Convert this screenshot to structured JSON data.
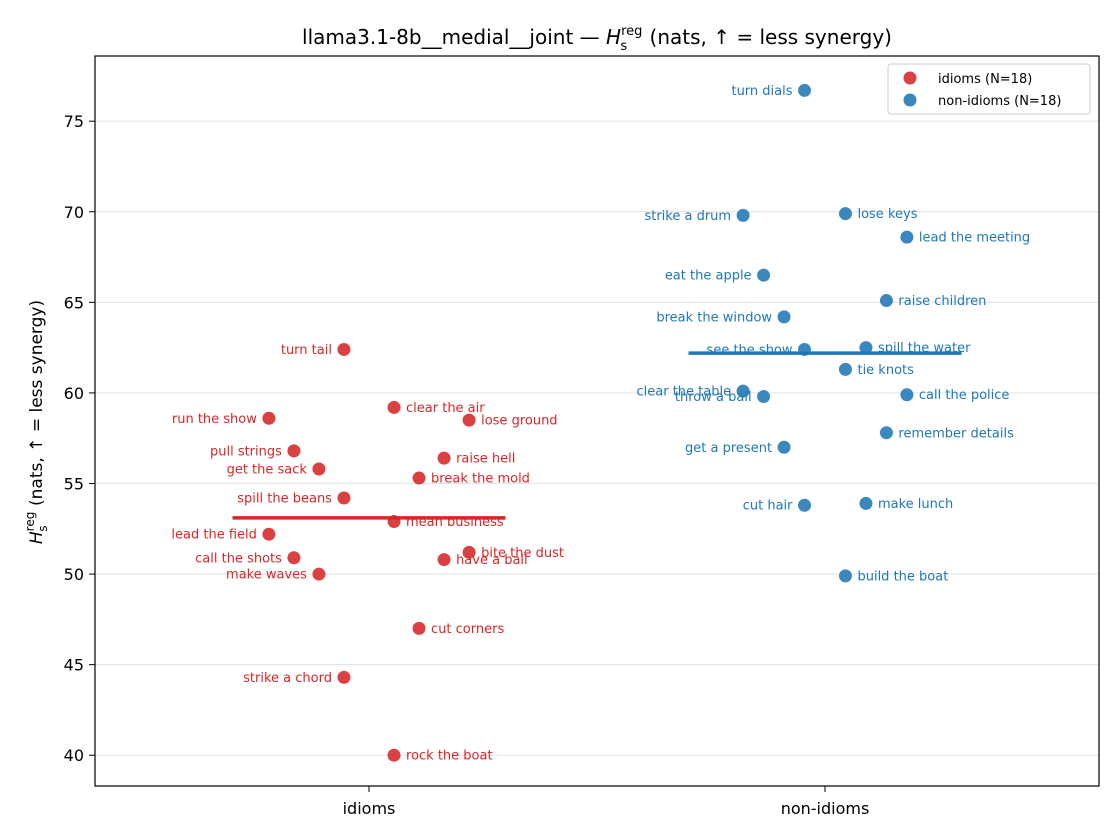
{
  "chart_data": {
    "type": "scatter",
    "title": {
      "prefix": "llama3.1-8b__medial__joint — ",
      "symbol": "H",
      "sub": "s",
      "sup": "reg",
      "suffix": " (nats, ↑ = less synergy)"
    },
    "ylabel": {
      "symbol": "H",
      "sub": "s",
      "sup": "reg",
      "suffix": " (nats, ↑ = less synergy)"
    },
    "categories": [
      "idioms",
      "non-idioms"
    ],
    "ylim": [
      38.3,
      78.6
    ],
    "yticks": [
      40,
      45,
      50,
      55,
      60,
      65,
      70,
      75
    ],
    "grid": "horizontal",
    "legend": {
      "position": "top-right"
    },
    "colors": {
      "idioms": "#d62728",
      "non-idioms": "#1f77b4"
    },
    "series": [
      {
        "name": "idioms (N=18)",
        "category": "idioms",
        "mean": 53.1,
        "points": [
          {
            "label": "turn tail",
            "jitter": -0.055,
            "y": 62.4
          },
          {
            "label": "clear the air",
            "jitter": 0.055,
            "y": 59.2
          },
          {
            "label": "run the show",
            "jitter": -0.22,
            "y": 58.6
          },
          {
            "label": "lose ground",
            "jitter": 0.22,
            "y": 58.5
          },
          {
            "label": "pull strings",
            "jitter": -0.165,
            "y": 56.8
          },
          {
            "label": "raise hell",
            "jitter": 0.165,
            "y": 56.4
          },
          {
            "label": "get the sack",
            "jitter": -0.11,
            "y": 55.8
          },
          {
            "label": "break the mold",
            "jitter": 0.11,
            "y": 55.3
          },
          {
            "label": "spill the beans",
            "jitter": -0.055,
            "y": 54.2
          },
          {
            "label": "mean business",
            "jitter": 0.055,
            "y": 52.9
          },
          {
            "label": "lead the field",
            "jitter": -0.22,
            "y": 52.2
          },
          {
            "label": "bite the dust",
            "jitter": 0.22,
            "y": 51.2
          },
          {
            "label": "call the shots",
            "jitter": -0.165,
            "y": 50.9
          },
          {
            "label": "have a ball",
            "jitter": 0.165,
            "y": 50.8
          },
          {
            "label": "make waves",
            "jitter": -0.11,
            "y": 50.0
          },
          {
            "label": "cut corners",
            "jitter": 0.11,
            "y": 47.0
          },
          {
            "label": "strike a chord",
            "jitter": -0.055,
            "y": 44.3
          },
          {
            "label": "rock the boat",
            "jitter": 0.055,
            "y": 40.0
          }
        ]
      },
      {
        "name": "non-idioms (N=18)",
        "category": "non-idioms",
        "mean": 62.2,
        "points": [
          {
            "label": "turn dials",
            "jitter": -0.045,
            "y": 76.7
          },
          {
            "label": "lose keys",
            "jitter": 0.045,
            "y": 69.9
          },
          {
            "label": "strike a drum",
            "jitter": -0.18,
            "y": 69.8
          },
          {
            "label": "lead the meeting",
            "jitter": 0.18,
            "y": 68.6
          },
          {
            "label": "eat the apple",
            "jitter": -0.135,
            "y": 66.5
          },
          {
            "label": "raise children",
            "jitter": 0.135,
            "y": 65.1
          },
          {
            "label": "break the window",
            "jitter": -0.09,
            "y": 64.2
          },
          {
            "label": "spill the water",
            "jitter": 0.09,
            "y": 62.5
          },
          {
            "label": "see the show",
            "jitter": -0.045,
            "y": 62.4
          },
          {
            "label": "tie knots",
            "jitter": 0.045,
            "y": 61.3
          },
          {
            "label": "clear the table",
            "jitter": -0.18,
            "y": 60.1
          },
          {
            "label": "call the police",
            "jitter": 0.18,
            "y": 59.9
          },
          {
            "label": "throw a ball",
            "jitter": -0.135,
            "y": 59.8
          },
          {
            "label": "remember details",
            "jitter": 0.135,
            "y": 57.8
          },
          {
            "label": "get a present",
            "jitter": -0.09,
            "y": 57.0
          },
          {
            "label": "make lunch",
            "jitter": 0.09,
            "y": 53.9
          },
          {
            "label": "cut hair",
            "jitter": -0.045,
            "y": 53.8
          },
          {
            "label": "build the boat",
            "jitter": 0.045,
            "y": 49.9
          }
        ]
      }
    ]
  }
}
